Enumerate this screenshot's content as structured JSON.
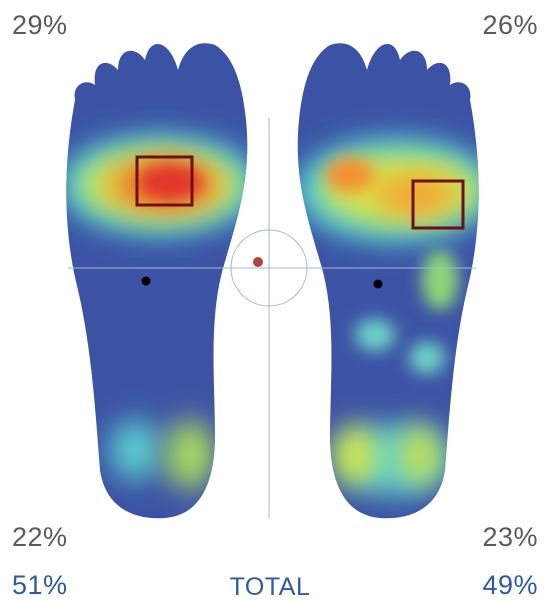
{
  "left_foot": {
    "forefoot": "29%",
    "rearfoot": "22%",
    "total": "51%"
  },
  "right_foot": {
    "forefoot": "26%",
    "rearfoot": "23%",
    "total": "49%"
  },
  "total_label": "TOTAL"
}
